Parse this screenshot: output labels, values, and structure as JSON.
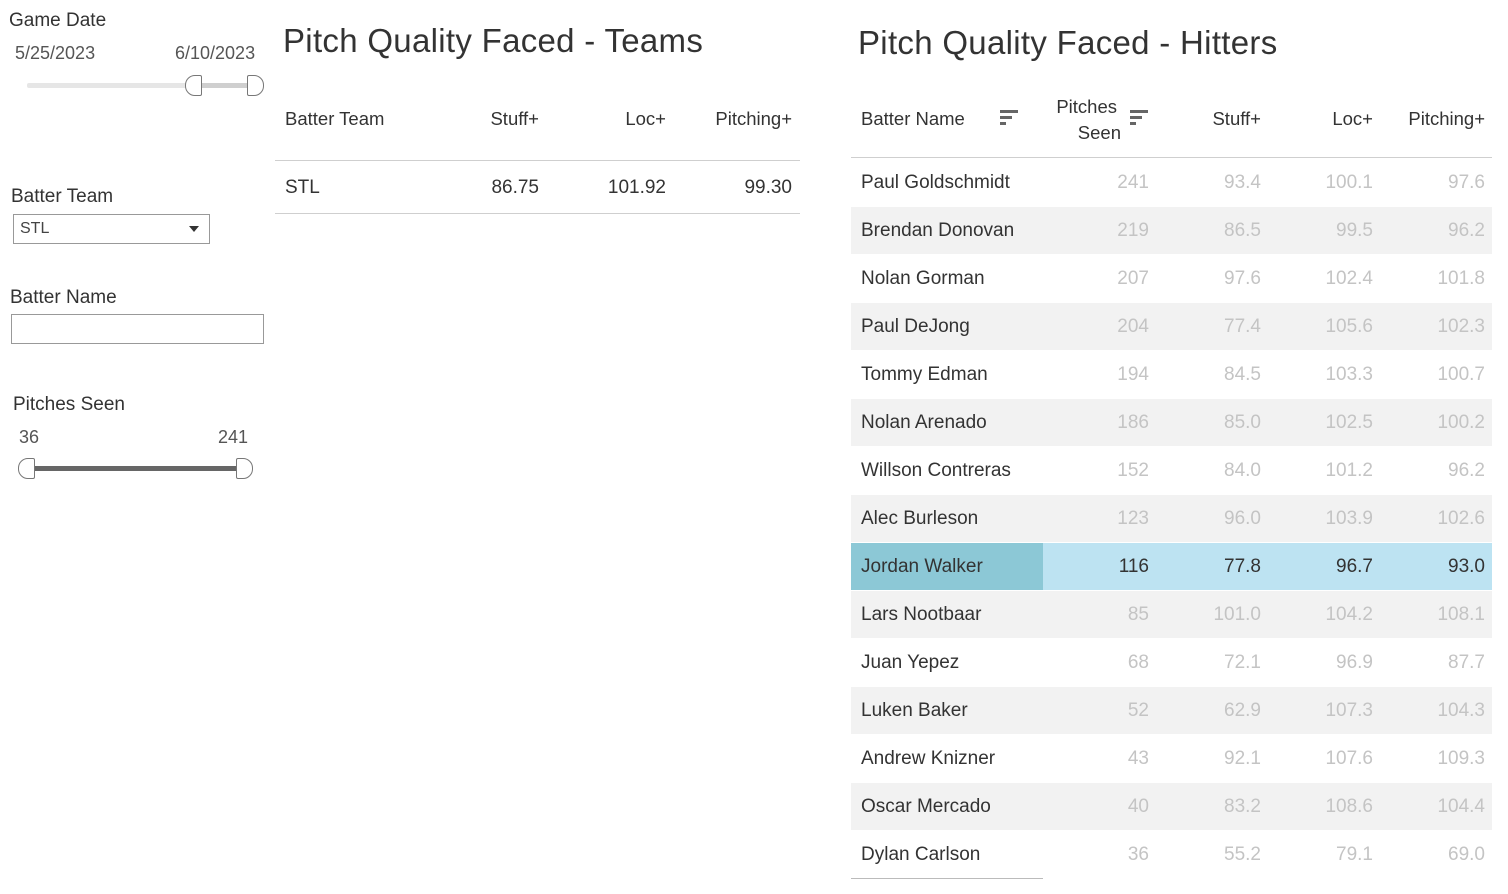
{
  "filters": {
    "game_date": {
      "title": "Game Date",
      "start": "5/25/2023",
      "end": "6/10/2023"
    },
    "batter_team": {
      "title": "Batter Team",
      "selected": "STL"
    },
    "batter_name": {
      "title": "Batter Name",
      "value": ""
    },
    "pitches_seen": {
      "title": "Pitches Seen",
      "min": "36",
      "max": "241"
    }
  },
  "teams": {
    "title": "Pitch Quality Faced - Teams",
    "headers": {
      "team": "Batter Team",
      "stuff": "Stuff+",
      "loc": "Loc+",
      "pitching": "Pitching+"
    },
    "rows": [
      {
        "team": "STL",
        "stuff": "86.75",
        "loc": "101.92",
        "pitching": "99.30"
      }
    ]
  },
  "hitters": {
    "title": "Pitch Quality Faced - Hitters",
    "headers": {
      "name": "Batter Name",
      "pitches_1": "Pitches",
      "pitches_2": "Seen",
      "stuff": "Stuff+",
      "loc": "Loc+",
      "pitching": "Pitching+"
    },
    "highlight_color": "#bde3f2",
    "highlight_name_color": "#8cc8d6",
    "rows": [
      {
        "name": "Paul Goldschmidt",
        "pitches": "241",
        "stuff": "93.4",
        "loc": "100.1",
        "pitching": "97.6"
      },
      {
        "name": "Brendan Donovan",
        "pitches": "219",
        "stuff": "86.5",
        "loc": "99.5",
        "pitching": "96.2"
      },
      {
        "name": "Nolan Gorman",
        "pitches": "207",
        "stuff": "97.6",
        "loc": "102.4",
        "pitching": "101.8"
      },
      {
        "name": "Paul DeJong",
        "pitches": "204",
        "stuff": "77.4",
        "loc": "105.6",
        "pitching": "102.3"
      },
      {
        "name": "Tommy Edman",
        "pitches": "194",
        "stuff": "84.5",
        "loc": "103.3",
        "pitching": "100.7"
      },
      {
        "name": "Nolan Arenado",
        "pitches": "186",
        "stuff": "85.0",
        "loc": "102.5",
        "pitching": "100.2"
      },
      {
        "name": "Willson Contreras",
        "pitches": "152",
        "stuff": "84.0",
        "loc": "101.2",
        "pitching": "96.2"
      },
      {
        "name": "Alec Burleson",
        "pitches": "123",
        "stuff": "96.0",
        "loc": "103.9",
        "pitching": "102.6"
      },
      {
        "name": "Jordan Walker",
        "pitches": "116",
        "stuff": "77.8",
        "loc": "96.7",
        "pitching": "93.0",
        "highlighted": true
      },
      {
        "name": "Lars Nootbaar",
        "pitches": "85",
        "stuff": "101.0",
        "loc": "104.2",
        "pitching": "108.1"
      },
      {
        "name": "Juan Yepez",
        "pitches": "68",
        "stuff": "72.1",
        "loc": "96.9",
        "pitching": "87.7"
      },
      {
        "name": "Luken Baker",
        "pitches": "52",
        "stuff": "62.9",
        "loc": "107.3",
        "pitching": "104.3"
      },
      {
        "name": "Andrew Knizner",
        "pitches": "43",
        "stuff": "92.1",
        "loc": "107.6",
        "pitching": "109.3"
      },
      {
        "name": "Oscar Mercado",
        "pitches": "40",
        "stuff": "83.2",
        "loc": "108.6",
        "pitching": "104.4"
      },
      {
        "name": "Dylan Carlson",
        "pitches": "36",
        "stuff": "55.2",
        "loc": "79.1",
        "pitching": "69.0"
      }
    ]
  }
}
